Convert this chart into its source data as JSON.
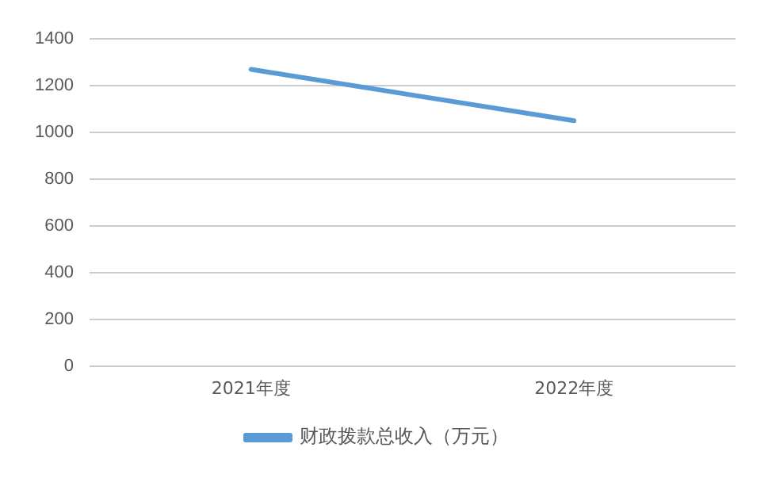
{
  "chart_data": {
    "type": "line",
    "categories": [
      "2021年度",
      "2022年度"
    ],
    "series": [
      {
        "name": "财政拨款总收入（万元）",
        "color": "#5b9bd5",
        "values": [
          1270,
          1050
        ]
      }
    ],
    "ylim": [
      0,
      1400
    ],
    "yticks": [
      0,
      200,
      400,
      600,
      800,
      1000,
      1200,
      1400
    ],
    "grid": "y",
    "legend": "bottom",
    "marker": "none",
    "line_style": "solid"
  }
}
